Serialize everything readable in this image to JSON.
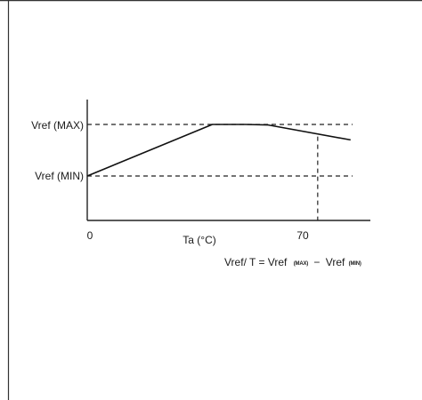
{
  "chart_data": {
    "type": "line",
    "xlabel": "Ta (°C)",
    "ylabel": "",
    "x_ticks": [
      "0",
      "70"
    ],
    "y_labels": {
      "max": "Vref (MAX)",
      "min": "Vref (MIN)"
    },
    "series": [
      {
        "x": [
          0,
          38,
          48,
          55,
          80
        ],
        "y": [
          0.0,
          1.0,
          1.0,
          0.99,
          0.7
        ]
      }
    ],
    "reference_lines": {
      "y_max_level": 1.0,
      "y_min_level": 0.0,
      "x_marker": 70
    },
    "xlim": [
      0,
      86
    ],
    "ylim": [
      -0.9,
      1.2
    ],
    "grid": false,
    "equation": {
      "lhs": "Vref/ T = Vref",
      "max_sub": "(MAX)",
      "minus": "−",
      "rhs": "Vref",
      "min_sub": "(MIN)"
    }
  }
}
